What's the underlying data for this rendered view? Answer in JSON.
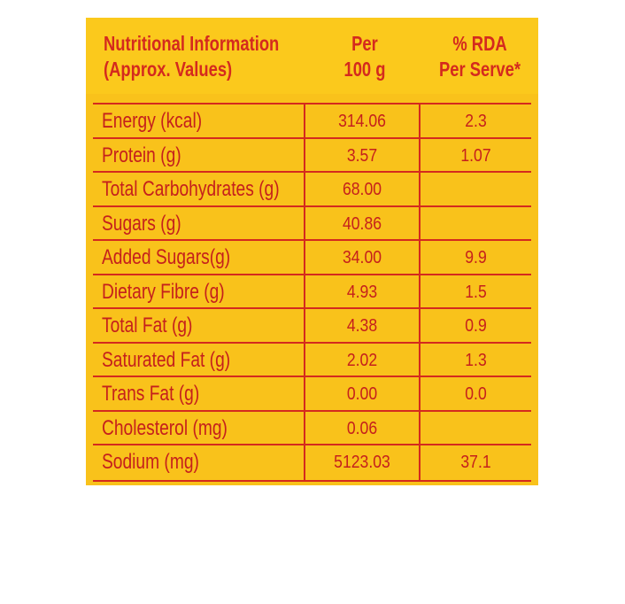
{
  "header": {
    "col1_line1": "Nutritional Information",
    "col1_line2": "(Approx. Values)",
    "col2_line1": "Per",
    "col2_line2": "100 g",
    "col3_line1": "% RDA",
    "col3_line2": "Per Serve*"
  },
  "rows": [
    {
      "name": "Energy (kcal)",
      "per100": "314.06",
      "rda": "2.3"
    },
    {
      "name": "Protein (g)",
      "per100": "3.57",
      "rda": "1.07"
    },
    {
      "name": "Total Carbohydrates (g)",
      "per100": "68.00",
      "rda": ""
    },
    {
      "name": "Sugars (g)",
      "per100": "40.86",
      "rda": ""
    },
    {
      "name": "Added Sugars(g)",
      "per100": "34.00",
      "rda": "9.9"
    },
    {
      "name": "Dietary Fibre (g)",
      "per100": "4.93",
      "rda": "1.5"
    },
    {
      "name": "Total Fat (g)",
      "per100": "4.38",
      "rda": "0.9"
    },
    {
      "name": "Saturated Fat (g)",
      "per100": "2.02",
      "rda": "1.3"
    },
    {
      "name": "Trans Fat (g)",
      "per100": "0.00",
      "rda": "0.0"
    },
    {
      "name": "Cholesterol (mg)",
      "per100": "0.06",
      "rda": ""
    },
    {
      "name": "Sodium (mg)",
      "per100": "5123.03",
      "rda": "37.1"
    }
  ],
  "colors": {
    "background": "#f9c21b",
    "text": "#c5201c",
    "rule": "#d42a1e"
  }
}
